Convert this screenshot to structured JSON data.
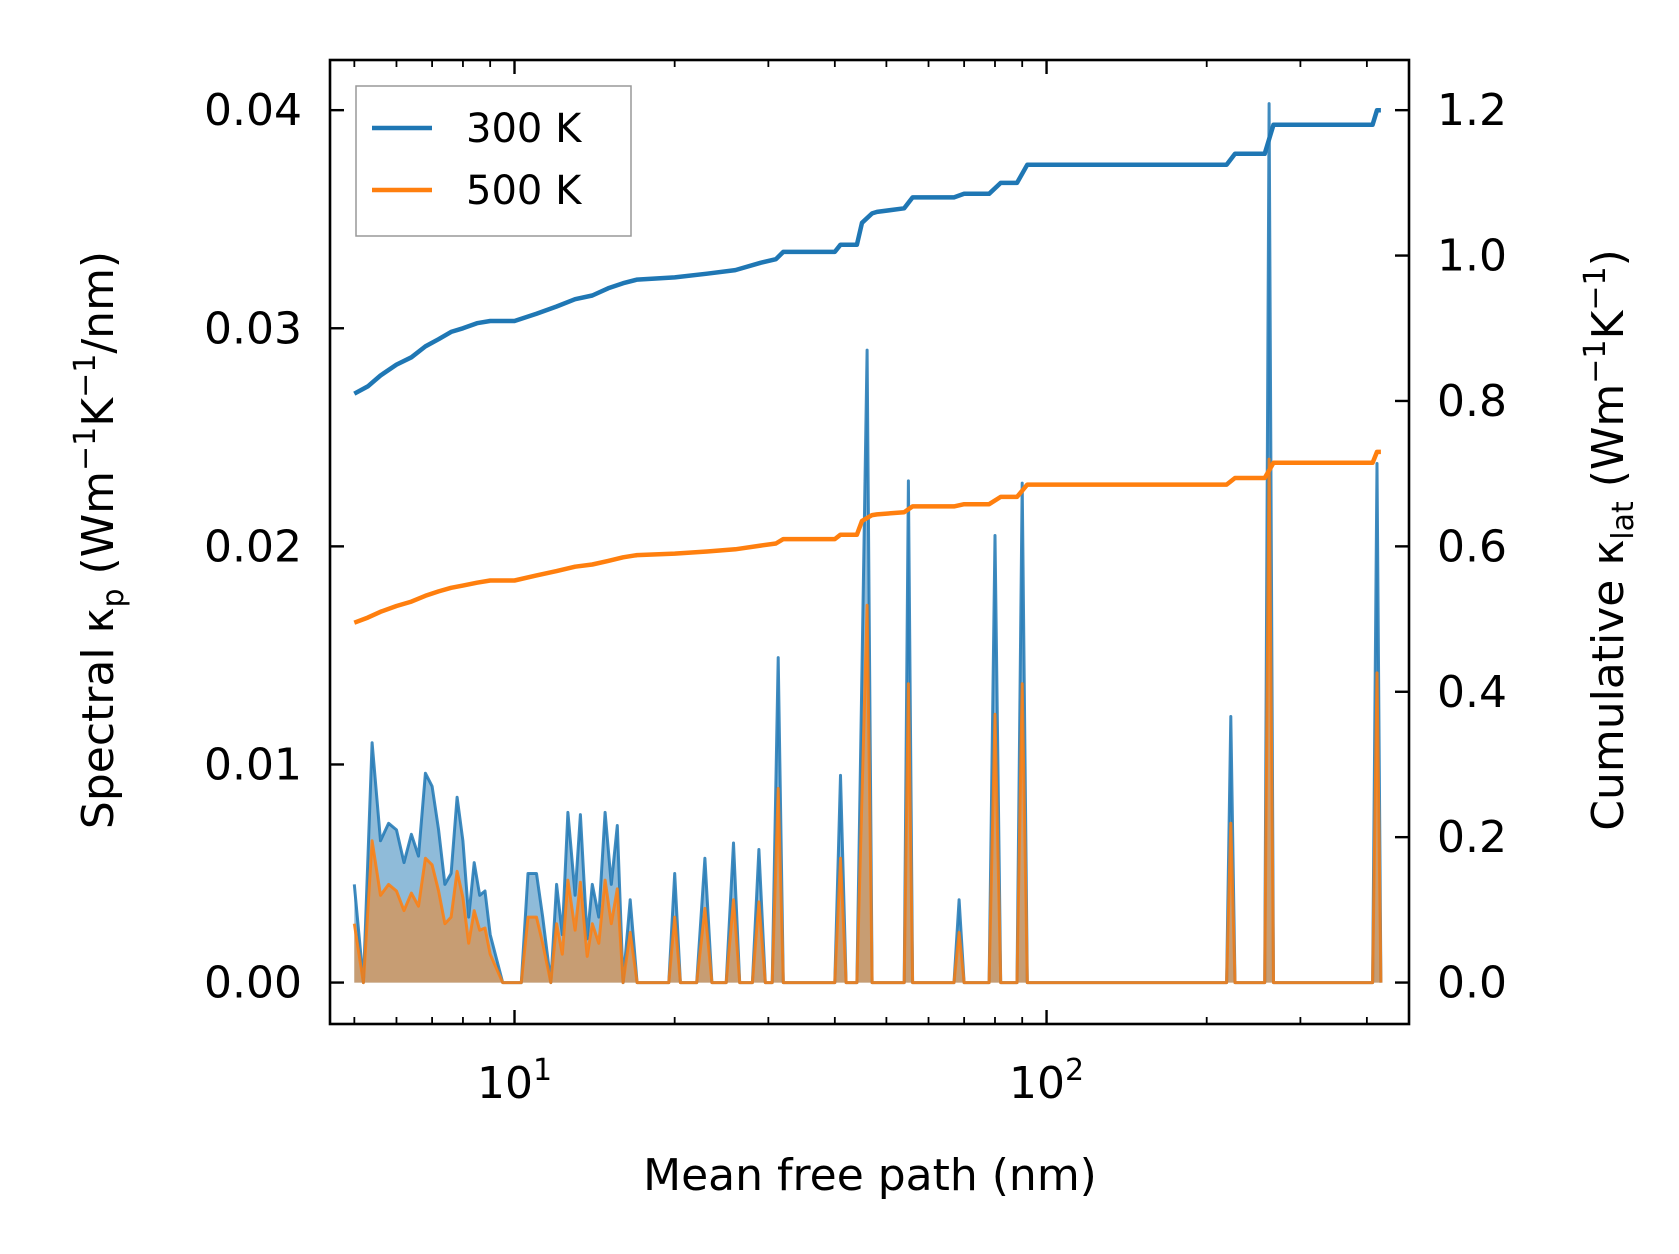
{
  "chart_data": {
    "type": "line",
    "xlabel": "Mean free path (nm)",
    "xscale": "log",
    "xlim": [
      4.5,
      480
    ],
    "x_ticks": [
      {
        "value": 10,
        "base": "10",
        "exp": "1"
      },
      {
        "value": 100,
        "base": "10",
        "exp": "2"
      }
    ],
    "left_axis": {
      "label_prefix": "Spectral κ",
      "label_sub": "p",
      "label_open": " (Wm",
      "label_exp1": "−1",
      "label_k": "K",
      "label_exp2": "−1",
      "label_suffix": "/nm)",
      "ylim": [
        -0.0019,
        0.0423
      ],
      "ticks": [
        "0.00",
        "0.01",
        "0.02",
        "0.03",
        "0.04"
      ],
      "tick_values": [
        0.0,
        0.01,
        0.02,
        0.03,
        0.04
      ]
    },
    "right_axis": {
      "label_prefix": "Cumulative κ",
      "label_sub": "lat",
      "label_open": " (Wm",
      "label_exp1": "−1",
      "label_k": "K",
      "label_exp2": "−1",
      "label_suffix": ")",
      "ylim": [
        -0.057,
        1.269
      ],
      "ticks": [
        "0.0",
        "0.2",
        "0.4",
        "0.6",
        "0.8",
        "1.0",
        "1.2"
      ],
      "tick_values": [
        0.0,
        0.2,
        0.4,
        0.6,
        0.8,
        1.0,
        1.2
      ]
    },
    "legend": {
      "position": "upper-left",
      "entries": [
        {
          "label": "300 K",
          "color": "#1f77b4"
        },
        {
          "label": "500 K",
          "color": "#ff7f0e"
        }
      ]
    },
    "spectral": {
      "x": [
        5.0,
        5.2,
        5.4,
        5.6,
        5.8,
        6.0,
        6.2,
        6.4,
        6.6,
        6.8,
        7.0,
        7.2,
        7.4,
        7.6,
        7.8,
        8.0,
        8.2,
        8.4,
        8.6,
        8.8,
        9.0,
        9.5,
        10.0,
        10.3,
        10.6,
        11.0,
        11.3,
        11.7,
        12.0,
        12.3,
        12.6,
        13.0,
        13.3,
        13.7,
        14.0,
        14.4,
        14.8,
        15.2,
        15.6,
        16.0,
        16.5,
        17.0,
        17.5,
        18.0,
        19.5,
        20.0,
        20.5,
        22.0,
        22.8,
        23.5,
        25.0,
        25.8,
        26.5,
        28.0,
        28.8,
        29.6,
        30.5,
        31.3,
        32.0,
        40.0,
        41.0,
        42.0,
        44.0,
        45.0,
        46.0,
        47.0,
        48.0,
        54.0,
        55.0,
        56.0,
        57.0,
        67.0,
        68.5,
        70.0,
        78.0,
        80.0,
        82.0,
        88.0,
        90.0,
        92.0,
        218.0,
        222.0,
        226.0,
        257.0,
        262.0,
        267.0,
        410.0,
        418.0,
        425.0
      ],
      "series": [
        {
          "name": "300 K",
          "color": "#1f77b4",
          "values": [
            0.0045,
            0.0,
            0.011,
            0.0065,
            0.0073,
            0.007,
            0.0055,
            0.0068,
            0.0058,
            0.0096,
            0.009,
            0.007,
            0.0045,
            0.005,
            0.0085,
            0.0065,
            0.003,
            0.0055,
            0.004,
            0.0042,
            0.0022,
            0.0,
            0.0,
            0.0,
            0.005,
            0.005,
            0.003,
            0.0,
            0.0045,
            0.0022,
            0.0078,
            0.004,
            0.0077,
            0.002,
            0.0045,
            0.003,
            0.0078,
            0.0045,
            0.0072,
            0.0,
            0.0038,
            0.0,
            0.0,
            0.0,
            0.0,
            0.005,
            0.0,
            0.0,
            0.0057,
            0.0,
            0.0,
            0.0064,
            0.0,
            0.0,
            0.0061,
            0.0,
            0.0,
            0.0149,
            0.0,
            0.0,
            0.0095,
            0.0,
            0.0,
            0.0144,
            0.029,
            0.0,
            0.0,
            0.0,
            0.023,
            0.0,
            0.0,
            0.0,
            0.0038,
            0.0,
            0.0,
            0.0205,
            0.0,
            0.0,
            0.0229,
            0.0,
            0.0,
            0.0122,
            0.0,
            0.0,
            0.0403,
            0.0,
            0.0,
            0.0238,
            0.0
          ]
        },
        {
          "name": "500 K",
          "color": "#ff7f0e",
          "values": [
            0.0027,
            0.0,
            0.0065,
            0.004,
            0.0045,
            0.0042,
            0.0033,
            0.0041,
            0.0035,
            0.0057,
            0.0054,
            0.0042,
            0.0027,
            0.003,
            0.0051,
            0.0039,
            0.0018,
            0.0033,
            0.0024,
            0.0025,
            0.0013,
            0.0,
            0.0,
            0.0,
            0.003,
            0.003,
            0.0018,
            0.0,
            0.0027,
            0.0013,
            0.0047,
            0.0024,
            0.0046,
            0.0012,
            0.0027,
            0.0018,
            0.0047,
            0.0027,
            0.0043,
            0.0,
            0.0023,
            0.0,
            0.0,
            0.0,
            0.0,
            0.003,
            0.0,
            0.0,
            0.0034,
            0.0,
            0.0,
            0.0038,
            0.0,
            0.0,
            0.0037,
            0.0,
            0.0,
            0.0089,
            0.0,
            0.0,
            0.0057,
            0.0,
            0.0,
            0.0086,
            0.0173,
            0.0,
            0.0,
            0.0,
            0.0137,
            0.0,
            0.0,
            0.0,
            0.0023,
            0.0,
            0.0,
            0.0123,
            0.0,
            0.0,
            0.0137,
            0.0,
            0.0,
            0.0073,
            0.0,
            0.0,
            0.024,
            0.0,
            0.0,
            0.0142,
            0.0
          ]
        }
      ]
    },
    "cumulative": {
      "series": [
        {
          "name": "300 K",
          "color": "#1f77b4",
          "x": [
            5.0,
            5.3,
            5.6,
            6.0,
            6.4,
            6.8,
            7.2,
            7.6,
            8.0,
            8.5,
            9.0,
            10.0,
            11.0,
            12.0,
            13.0,
            14.0,
            15.0,
            16.0,
            17.0,
            20.0,
            23.0,
            26.0,
            29.0,
            31.0,
            32.0,
            40.0,
            41.0,
            44.0,
            45.0,
            47.0,
            48.0,
            54.0,
            56.0,
            67.0,
            70.0,
            78.0,
            82.0,
            88.0,
            92.0,
            218.0,
            226.0,
            257.0,
            267.0,
            410.0,
            418.0,
            425.0
          ],
          "y": [
            0.81,
            0.82,
            0.835,
            0.85,
            0.86,
            0.875,
            0.885,
            0.895,
            0.9,
            0.907,
            0.91,
            0.91,
            0.92,
            0.93,
            0.94,
            0.945,
            0.955,
            0.962,
            0.967,
            0.97,
            0.975,
            0.98,
            0.99,
            0.995,
            1.005,
            1.005,
            1.015,
            1.015,
            1.045,
            1.058,
            1.06,
            1.065,
            1.08,
            1.08,
            1.085,
            1.085,
            1.1,
            1.1,
            1.125,
            1.125,
            1.14,
            1.14,
            1.18,
            1.18,
            1.2,
            1.2
          ]
        },
        {
          "name": "500 K",
          "color": "#ff7f0e",
          "x": [
            5.0,
            5.3,
            5.6,
            6.0,
            6.4,
            6.8,
            7.2,
            7.6,
            8.0,
            8.5,
            9.0,
            10.0,
            11.0,
            12.0,
            13.0,
            14.0,
            15.0,
            16.0,
            17.0,
            20.0,
            23.0,
            26.0,
            29.0,
            31.0,
            32.0,
            40.0,
            41.0,
            44.0,
            45.0,
            47.0,
            48.0,
            54.0,
            56.0,
            67.0,
            70.0,
            78.0,
            82.0,
            88.0,
            92.0,
            218.0,
            226.0,
            257.0,
            267.0,
            410.0,
            418.0,
            425.0
          ],
          "y": [
            0.495,
            0.502,
            0.51,
            0.518,
            0.524,
            0.532,
            0.538,
            0.543,
            0.546,
            0.55,
            0.553,
            0.553,
            0.56,
            0.566,
            0.572,
            0.575,
            0.58,
            0.585,
            0.588,
            0.59,
            0.593,
            0.596,
            0.601,
            0.604,
            0.61,
            0.61,
            0.616,
            0.616,
            0.635,
            0.643,
            0.644,
            0.647,
            0.655,
            0.655,
            0.658,
            0.658,
            0.668,
            0.668,
            0.685,
            0.685,
            0.694,
            0.694,
            0.715,
            0.715,
            0.73,
            0.73
          ]
        }
      ]
    }
  }
}
